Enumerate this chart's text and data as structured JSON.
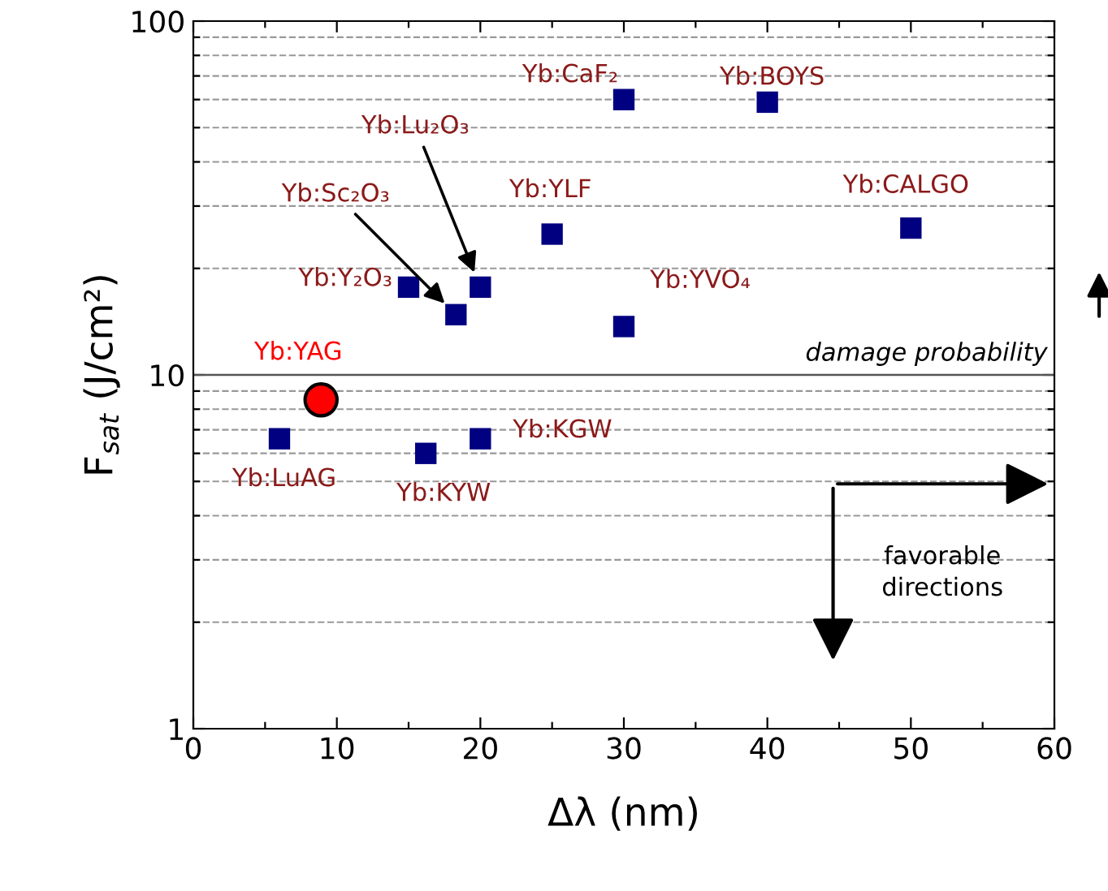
{
  "chart_data": {
    "type": "scatter",
    "xlabel": "Δλ (nm)",
    "ylabel": "F$_{sat}$ (J/cm²)",
    "log": "y",
    "grid": "y",
    "marker": "square",
    "xlim": [
      0,
      60
    ],
    "xticks": [
      0,
      {
        "value": 5,
        "label": null
      },
      10,
      {
        "value": 15,
        "label": null
      },
      20,
      {
        "value": 25,
        "label": null
      },
      30,
      {
        "value": 35,
        "label": null
      },
      40,
      {
        "value": 45,
        "label": null
      },
      50,
      {
        "value": 55,
        "label": null
      },
      60
    ],
    "ylim": [
      1,
      100
    ],
    "yticks": [
      1,
      {
        "value": 2,
        "label": null
      },
      {
        "value": 3,
        "label": null
      },
      {
        "value": 4,
        "label": null
      },
      {
        "value": 5,
        "label": null
      },
      {
        "value": 6,
        "label": null
      },
      {
        "value": 7,
        "label": null
      },
      {
        "value": 8,
        "label": null
      },
      {
        "value": 9,
        "label": null
      },
      10,
      {
        "value": 20,
        "label": null
      },
      {
        "value": 30,
        "label": null
      },
      {
        "value": 40,
        "label": null
      },
      {
        "value": 50,
        "label": null
      },
      {
        "value": 60,
        "label": null
      },
      {
        "value": 70,
        "label": null
      },
      {
        "value": 80,
        "label": null
      },
      {
        "value": 90,
        "label": null
      },
      100
    ],
    "ref_lines": [
      {
        "axis": "y",
        "value": 10,
        "label": "damage probability"
      }
    ],
    "annotations": [
      "favorable directions"
    ],
    "series": [
      {
        "name": "Yb:CaF₂",
        "color": "#000080",
        "x": [
          30
        ],
        "values": [
          60
        ]
      },
      {
        "name": "Yb:BOYS",
        "color": "#000080",
        "x": [
          40
        ],
        "values": [
          59
        ]
      },
      {
        "name": "Yb:Lu₂O₃",
        "color": "#000080",
        "x": [
          20
        ],
        "values": [
          17.7
        ]
      },
      {
        "name": "Yb:Sc₂O₃",
        "color": "#000080",
        "x": [
          18.3
        ],
        "values": [
          14.8
        ]
      },
      {
        "name": "Yb:YLF",
        "color": "#000080",
        "x": [
          25
        ],
        "values": [
          25
        ]
      },
      {
        "name": "Yb:CALGO",
        "color": "#000080",
        "x": [
          50
        ],
        "values": [
          26
        ]
      },
      {
        "name": "Yb:Y₂O₃",
        "color": "#000080",
        "x": [
          15
        ],
        "values": [
          17.7
        ]
      },
      {
        "name": "Yb:YVO₄",
        "color": "#000080",
        "x": [
          30
        ],
        "values": [
          13.7
        ]
      },
      {
        "name": "Yb:YAG",
        "color": "#ff0000",
        "marker": "circle",
        "x": [
          8.9
        ],
        "values": [
          8.5
        ]
      },
      {
        "name": "Yb:LuAG",
        "color": "#000080",
        "x": [
          6
        ],
        "values": [
          6.6
        ]
      },
      {
        "name": "Yb:KYW",
        "color": "#000080",
        "x": [
          16.2
        ],
        "values": [
          6.0
        ]
      },
      {
        "name": "Yb:KGW",
        "color": "#000080",
        "x": [
          20
        ],
        "values": [
          6.6
        ]
      }
    ]
  }
}
